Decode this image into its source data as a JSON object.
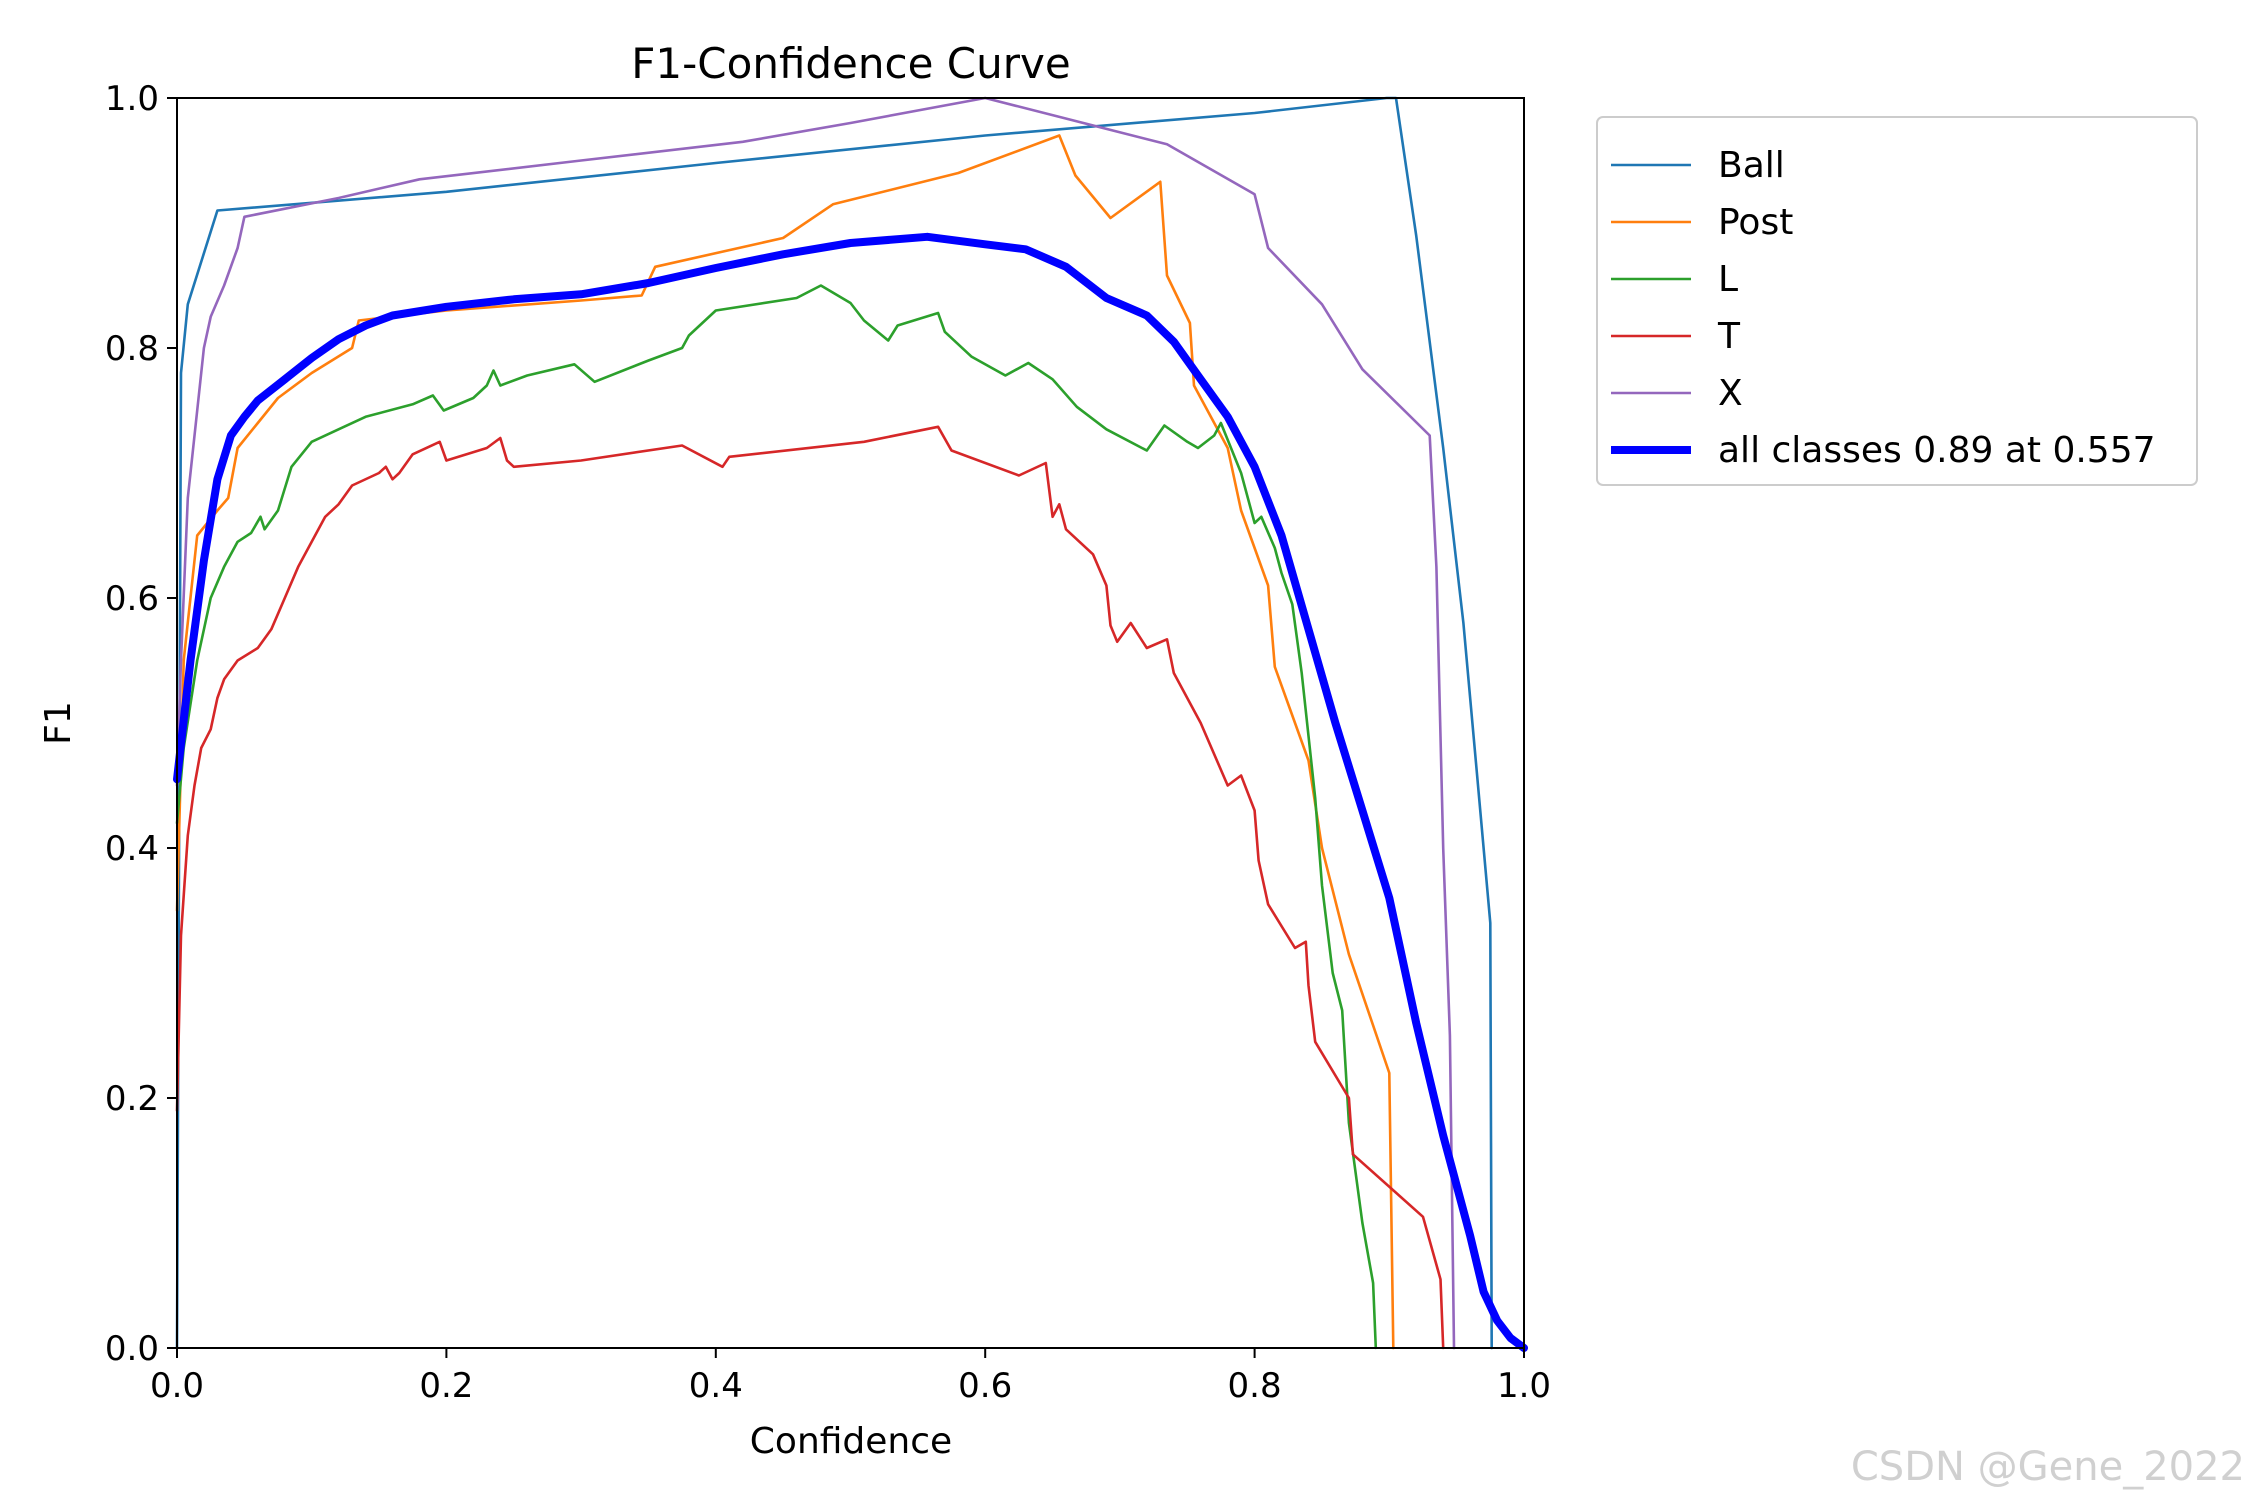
{
  "watermark": "CSDN @Gene_2022",
  "chart_data": {
    "type": "line",
    "title": "F1-Confidence Curve",
    "xlabel": "Confidence",
    "ylabel": "F1",
    "xlim": [
      0.0,
      1.0
    ],
    "ylim": [
      0.0,
      1.0
    ],
    "xticks": [
      "0.0",
      "0.2",
      "0.4",
      "0.6",
      "0.8",
      "1.0"
    ],
    "yticks": [
      "0.0",
      "0.2",
      "0.4",
      "0.6",
      "0.8",
      "1.0"
    ],
    "grid": false,
    "legend_position": "outside-top-right",
    "series": [
      {
        "name": "Ball",
        "color": "#1f77b4",
        "width": "thin",
        "points": [
          [
            0,
            0.0
          ],
          [
            0.003,
            0.78
          ],
          [
            0.008,
            0.835
          ],
          [
            0.03,
            0.91
          ],
          [
            0.2,
            0.925
          ],
          [
            0.4,
            0.948
          ],
          [
            0.6,
            0.97
          ],
          [
            0.8,
            0.988
          ],
          [
            0.898,
            1.0
          ],
          [
            0.905,
            1.0
          ],
          [
            0.92,
            0.89
          ],
          [
            0.94,
            0.72
          ],
          [
            0.955,
            0.58
          ],
          [
            0.965,
            0.46
          ],
          [
            0.975,
            0.34
          ],
          [
            0.976,
            0.0
          ]
        ]
      },
      {
        "name": "Post",
        "color": "#ff7f0e",
        "width": "thin",
        "points": [
          [
            0,
            0.35
          ],
          [
            0.005,
            0.55
          ],
          [
            0.015,
            0.65
          ],
          [
            0.03,
            0.67
          ],
          [
            0.038,
            0.68
          ],
          [
            0.045,
            0.72
          ],
          [
            0.06,
            0.74
          ],
          [
            0.075,
            0.76
          ],
          [
            0.1,
            0.78
          ],
          [
            0.13,
            0.8
          ],
          [
            0.135,
            0.822
          ],
          [
            0.2,
            0.83
          ],
          [
            0.3,
            0.838
          ],
          [
            0.345,
            0.842
          ],
          [
            0.355,
            0.865
          ],
          [
            0.45,
            0.888
          ],
          [
            0.487,
            0.915
          ],
          [
            0.58,
            0.94
          ],
          [
            0.655,
            0.97
          ],
          [
            0.667,
            0.938
          ],
          [
            0.693,
            0.904
          ],
          [
            0.73,
            0.933
          ],
          [
            0.735,
            0.858
          ],
          [
            0.752,
            0.82
          ],
          [
            0.755,
            0.77
          ],
          [
            0.78,
            0.72
          ],
          [
            0.79,
            0.67
          ],
          [
            0.81,
            0.61
          ],
          [
            0.815,
            0.545
          ],
          [
            0.84,
            0.47
          ],
          [
            0.85,
            0.4
          ],
          [
            0.87,
            0.315
          ],
          [
            0.9,
            0.22
          ],
          [
            0.903,
            0.0
          ]
        ]
      },
      {
        "name": "L",
        "color": "#2ca02c",
        "width": "thin",
        "points": [
          [
            0,
            0.42
          ],
          [
            0.005,
            0.48
          ],
          [
            0.015,
            0.55
          ],
          [
            0.025,
            0.6
          ],
          [
            0.035,
            0.625
          ],
          [
            0.045,
            0.645
          ],
          [
            0.055,
            0.652
          ],
          [
            0.062,
            0.665
          ],
          [
            0.065,
            0.655
          ],
          [
            0.075,
            0.67
          ],
          [
            0.085,
            0.705
          ],
          [
            0.1,
            0.725
          ],
          [
            0.12,
            0.735
          ],
          [
            0.14,
            0.745
          ],
          [
            0.175,
            0.755
          ],
          [
            0.19,
            0.762
          ],
          [
            0.198,
            0.75
          ],
          [
            0.22,
            0.76
          ],
          [
            0.23,
            0.77
          ],
          [
            0.235,
            0.782
          ],
          [
            0.24,
            0.77
          ],
          [
            0.26,
            0.778
          ],
          [
            0.295,
            0.787
          ],
          [
            0.31,
            0.773
          ],
          [
            0.35,
            0.79
          ],
          [
            0.375,
            0.8
          ],
          [
            0.38,
            0.81
          ],
          [
            0.4,
            0.83
          ],
          [
            0.46,
            0.84
          ],
          [
            0.478,
            0.85
          ],
          [
            0.5,
            0.836
          ],
          [
            0.51,
            0.822
          ],
          [
            0.528,
            0.806
          ],
          [
            0.535,
            0.818
          ],
          [
            0.565,
            0.828
          ],
          [
            0.57,
            0.813
          ],
          [
            0.59,
            0.793
          ],
          [
            0.615,
            0.778
          ],
          [
            0.632,
            0.788
          ],
          [
            0.65,
            0.775
          ],
          [
            0.668,
            0.753
          ],
          [
            0.69,
            0.735
          ],
          [
            0.72,
            0.718
          ],
          [
            0.733,
            0.738
          ],
          [
            0.75,
            0.725
          ],
          [
            0.758,
            0.72
          ],
          [
            0.77,
            0.73
          ],
          [
            0.775,
            0.74
          ],
          [
            0.79,
            0.7
          ],
          [
            0.8,
            0.66
          ],
          [
            0.805,
            0.665
          ],
          [
            0.815,
            0.64
          ],
          [
            0.82,
            0.62
          ],
          [
            0.828,
            0.595
          ],
          [
            0.835,
            0.54
          ],
          [
            0.845,
            0.44
          ],
          [
            0.85,
            0.37
          ],
          [
            0.858,
            0.3
          ],
          [
            0.865,
            0.27
          ],
          [
            0.87,
            0.18
          ],
          [
            0.88,
            0.1
          ],
          [
            0.888,
            0.052
          ],
          [
            0.89,
            0.0
          ]
        ]
      },
      {
        "name": "T",
        "color": "#d62728",
        "width": "thin",
        "points": [
          [
            0,
            0.19
          ],
          [
            0.003,
            0.33
          ],
          [
            0.008,
            0.41
          ],
          [
            0.013,
            0.45
          ],
          [
            0.018,
            0.48
          ],
          [
            0.025,
            0.495
          ],
          [
            0.03,
            0.52
          ],
          [
            0.035,
            0.535
          ],
          [
            0.045,
            0.55
          ],
          [
            0.06,
            0.56
          ],
          [
            0.07,
            0.575
          ],
          [
            0.08,
            0.6
          ],
          [
            0.09,
            0.625
          ],
          [
            0.1,
            0.645
          ],
          [
            0.11,
            0.665
          ],
          [
            0.12,
            0.675
          ],
          [
            0.13,
            0.69
          ],
          [
            0.15,
            0.7
          ],
          [
            0.155,
            0.705
          ],
          [
            0.16,
            0.695
          ],
          [
            0.165,
            0.7
          ],
          [
            0.175,
            0.715
          ],
          [
            0.195,
            0.725
          ],
          [
            0.2,
            0.71
          ],
          [
            0.23,
            0.72
          ],
          [
            0.24,
            0.728
          ],
          [
            0.245,
            0.71
          ],
          [
            0.25,
            0.705
          ],
          [
            0.3,
            0.71
          ],
          [
            0.375,
            0.722
          ],
          [
            0.405,
            0.705
          ],
          [
            0.41,
            0.713
          ],
          [
            0.51,
            0.725
          ],
          [
            0.565,
            0.737
          ],
          [
            0.575,
            0.718
          ],
          [
            0.625,
            0.698
          ],
          [
            0.645,
            0.708
          ],
          [
            0.65,
            0.665
          ],
          [
            0.655,
            0.675
          ],
          [
            0.66,
            0.655
          ],
          [
            0.68,
            0.635
          ],
          [
            0.69,
            0.61
          ],
          [
            0.693,
            0.578
          ],
          [
            0.698,
            0.565
          ],
          [
            0.708,
            0.58
          ],
          [
            0.72,
            0.56
          ],
          [
            0.735,
            0.567
          ],
          [
            0.74,
            0.54
          ],
          [
            0.76,
            0.5
          ],
          [
            0.78,
            0.45
          ],
          [
            0.79,
            0.458
          ],
          [
            0.8,
            0.43
          ],
          [
            0.803,
            0.39
          ],
          [
            0.81,
            0.355
          ],
          [
            0.83,
            0.32
          ],
          [
            0.838,
            0.325
          ],
          [
            0.84,
            0.29
          ],
          [
            0.845,
            0.245
          ],
          [
            0.87,
            0.2
          ],
          [
            0.873,
            0.155
          ],
          [
            0.925,
            0.105
          ],
          [
            0.938,
            0.055
          ],
          [
            0.94,
            0.0
          ]
        ]
      },
      {
        "name": "X",
        "color": "#9467bd",
        "width": "thin",
        "points": [
          [
            0,
            0.45
          ],
          [
            0.003,
            0.55
          ],
          [
            0.008,
            0.68
          ],
          [
            0.015,
            0.75
          ],
          [
            0.02,
            0.8
          ],
          [
            0.025,
            0.825
          ],
          [
            0.035,
            0.85
          ],
          [
            0.045,
            0.88
          ],
          [
            0.05,
            0.905
          ],
          [
            0.12,
            0.92
          ],
          [
            0.18,
            0.935
          ],
          [
            0.3,
            0.95
          ],
          [
            0.42,
            0.965
          ],
          [
            0.5,
            0.98
          ],
          [
            0.6,
            1.0
          ],
          [
            0.735,
            0.963
          ],
          [
            0.8,
            0.923
          ],
          [
            0.81,
            0.88
          ],
          [
            0.85,
            0.835
          ],
          [
            0.88,
            0.783
          ],
          [
            0.93,
            0.73
          ],
          [
            0.935,
            0.625
          ],
          [
            0.94,
            0.4
          ],
          [
            0.945,
            0.25
          ],
          [
            0.948,
            0.0
          ]
        ]
      },
      {
        "name": "all classes 0.89 at 0.557",
        "color": "#0000ff",
        "width": "thick",
        "points": [
          [
            0,
            0.455
          ],
          [
            0.01,
            0.55
          ],
          [
            0.02,
            0.63
          ],
          [
            0.03,
            0.695
          ],
          [
            0.04,
            0.73
          ],
          [
            0.05,
            0.745
          ],
          [
            0.06,
            0.758
          ],
          [
            0.08,
            0.775
          ],
          [
            0.1,
            0.792
          ],
          [
            0.12,
            0.807
          ],
          [
            0.14,
            0.818
          ],
          [
            0.16,
            0.826
          ],
          [
            0.2,
            0.833
          ],
          [
            0.25,
            0.839
          ],
          [
            0.3,
            0.843
          ],
          [
            0.35,
            0.852
          ],
          [
            0.4,
            0.864
          ],
          [
            0.45,
            0.875
          ],
          [
            0.5,
            0.884
          ],
          [
            0.557,
            0.889
          ],
          [
            0.6,
            0.883
          ],
          [
            0.63,
            0.879
          ],
          [
            0.66,
            0.865
          ],
          [
            0.69,
            0.84
          ],
          [
            0.72,
            0.826
          ],
          [
            0.74,
            0.805
          ],
          [
            0.76,
            0.775
          ],
          [
            0.78,
            0.745
          ],
          [
            0.8,
            0.705
          ],
          [
            0.82,
            0.65
          ],
          [
            0.84,
            0.575
          ],
          [
            0.86,
            0.5
          ],
          [
            0.88,
            0.43
          ],
          [
            0.9,
            0.36
          ],
          [
            0.92,
            0.26
          ],
          [
            0.94,
            0.17
          ],
          [
            0.96,
            0.09
          ],
          [
            0.97,
            0.045
          ],
          [
            0.98,
            0.022
          ],
          [
            0.99,
            0.008
          ],
          [
            1.0,
            0.0
          ]
        ]
      }
    ]
  }
}
